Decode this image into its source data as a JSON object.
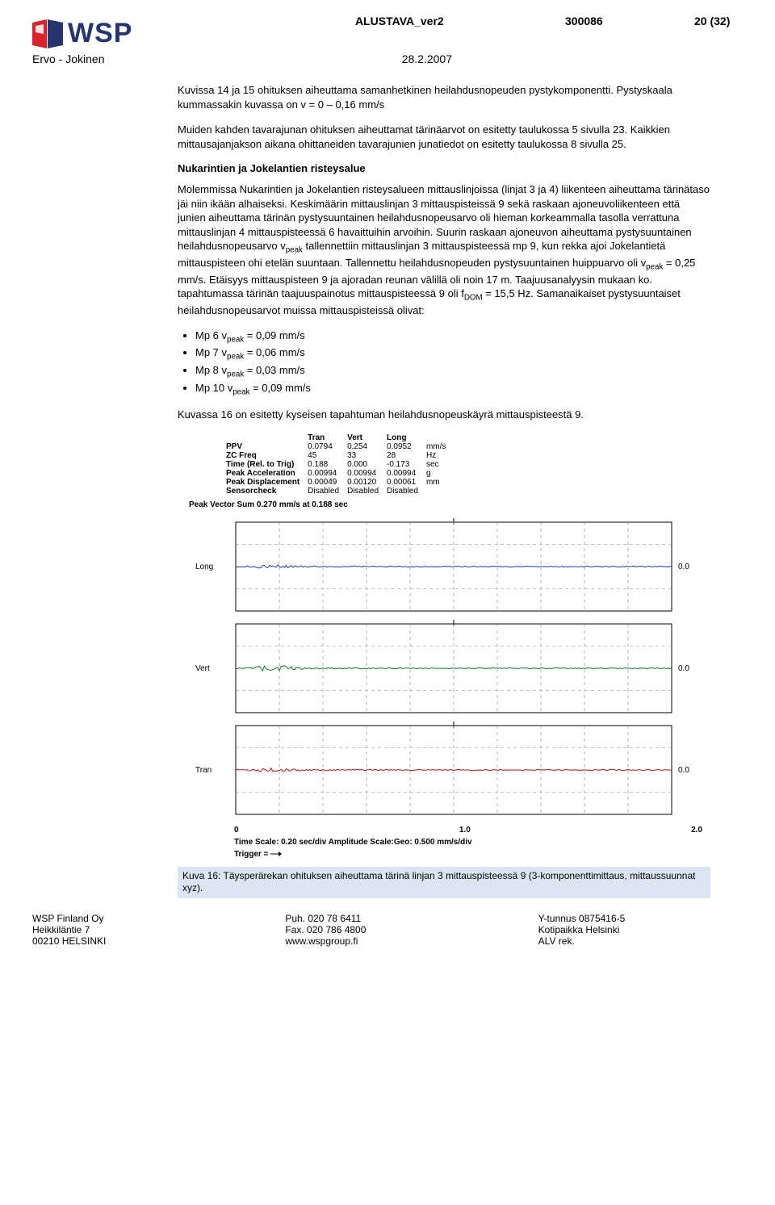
{
  "header": {
    "logo_text": "WSP",
    "logo_red": "#d8232a",
    "logo_blue": "#24356f",
    "title": "ALUSTAVA_ver2",
    "docnum": "300086",
    "pagenum": "20 (32)",
    "author": "Ervo -  Jokinen",
    "date": "28.2.2007"
  },
  "body": {
    "p1": "Kuvissa 14 ja 15 ohituksen aiheuttama samanhetkinen heilahdusnopeuden pystykomponentti. Pystyskaala kummassakin kuvassa on v = 0 – 0,16 mm/s",
    "p2": "Muiden kahden tavarajunan ohituksen aiheuttamat tärinäarvot on esitetty taulukossa 5 sivulla 23. Kaikkien mittausajanjakson aikana ohittaneiden tavarajunien junatiedot on esitetty taulukossa 8 sivulla 25.",
    "h1": "Nukarintien ja Jokelantien risteysalue",
    "p3a": "Molemmissa Nukarintien ja Jokelantien risteysalueen mittauslinjoissa (linjat 3 ja 4) liikenteen aiheuttama tärinätaso jäi niin ikään alhaiseksi. Keskimäärin mittauslinjan 3 mittauspisteissä 9 sekä raskaan ajoneuvoliikenteen että junien aiheuttama tärinän pystysuuntainen heilahdusnopeusarvo oli hieman korkeammalla tasolla verrattuna mittauslinjan 4 mittauspisteessä 6 havaittuihin arvoihin. Suurin raskaan ajoneuvon aiheuttama pystysuuntainen heilahdusnopeusarvo v",
    "p3b": " tallennettiin mittauslinjan 3 mittauspisteessä mp 9, kun rekka ajoi Jokelantietä mittauspisteen ohi etelän suuntaan. Tallennettu heilahdusnopeuden pystysuuntainen huippuarvo oli v",
    "p3c": " = 0,25 mm/s. Etäisyys mittauspisteen 9 ja ajoradan reunan välillä oli noin 17 m. Taajuusanalyysin mukaan ko. tapahtumassa tärinän taajuuspainotus mittauspisteessä 9 oli f",
    "p3d": " = 15,5 Hz. Samanaikaiset pystysuuntaiset heilahdusnopeusarvot muissa mittauspisteissä olivat:",
    "peak_label": "peak",
    "dom_label": "DOM",
    "bullets": [
      {
        "point": "Mp 6 v",
        "val": " = 0,09 mm/s"
      },
      {
        "point": "Mp 7 v",
        "val": " = 0,06 mm/s"
      },
      {
        "point": "Mp 8 v",
        "val": " = 0,03 mm/s"
      },
      {
        "point": "Mp 10 v",
        "val": " = 0,09 mm/s"
      }
    ],
    "p4": "Kuvassa 16 on esitetty kyseisen tapahtuman heilahdusnopeuskäyrä mittauspisteestä 9."
  },
  "figure": {
    "headers": [
      "",
      "Tran",
      "Vert",
      "Long",
      ""
    ],
    "rows": [
      [
        "PPV",
        "0.0794",
        "0.254",
        "0.0952",
        "mm/s"
      ],
      [
        "ZC Freq",
        "45",
        "33",
        "28",
        "Hz"
      ],
      [
        "Time (Rel. to Trig)",
        "0.188",
        "0.000",
        "-0.173",
        "sec"
      ],
      [
        "Peak Acceleration",
        "0.00994",
        "0.00994",
        "0.00994",
        "g"
      ],
      [
        "Peak Displacement",
        "0.00049",
        "0.00120",
        "0.00061",
        "mm"
      ],
      [
        "Sensorcheck",
        "Disabled",
        "Disabled",
        "Disabled",
        ""
      ]
    ],
    "pvs": "Peak Vector Sum  0.270 mm/s at 0.188 sec",
    "channels": [
      {
        "label": "Long",
        "color": "#1a3fbf",
        "val": "0.0"
      },
      {
        "label": "Vert",
        "color": "#0a7d24",
        "val": "0.0"
      },
      {
        "label": "Tran",
        "color": "#c01015",
        "val": "0.0"
      }
    ],
    "xticks": [
      "0",
      "1.0",
      "2.0"
    ],
    "scalenote1": "Time Scale: 0.20 sec/div  Amplitude Scale:Geo: 0.500 mm/s/div",
    "scalenote2": "Trigger = ",
    "grid_color": "#888888",
    "caption": "Kuva 16: Täysperärekan ohituksen aiheuttama tärinä linjan 3 mittauspisteessä 9 (3-komponenttimittaus, mittaussuunnat xyz)."
  },
  "footer": {
    "col1": [
      "WSP Finland Oy",
      "Heikkiläntie 7",
      "00210 HELSINKI"
    ],
    "col2": [
      "Puh. 020 78 6411",
      "Fax. 020 786 4800",
      "www.wspgroup.fi"
    ],
    "col3": [
      "Y-tunnus 0875416-5",
      "Kotipaikka Helsinki",
      "ALV rek."
    ]
  }
}
